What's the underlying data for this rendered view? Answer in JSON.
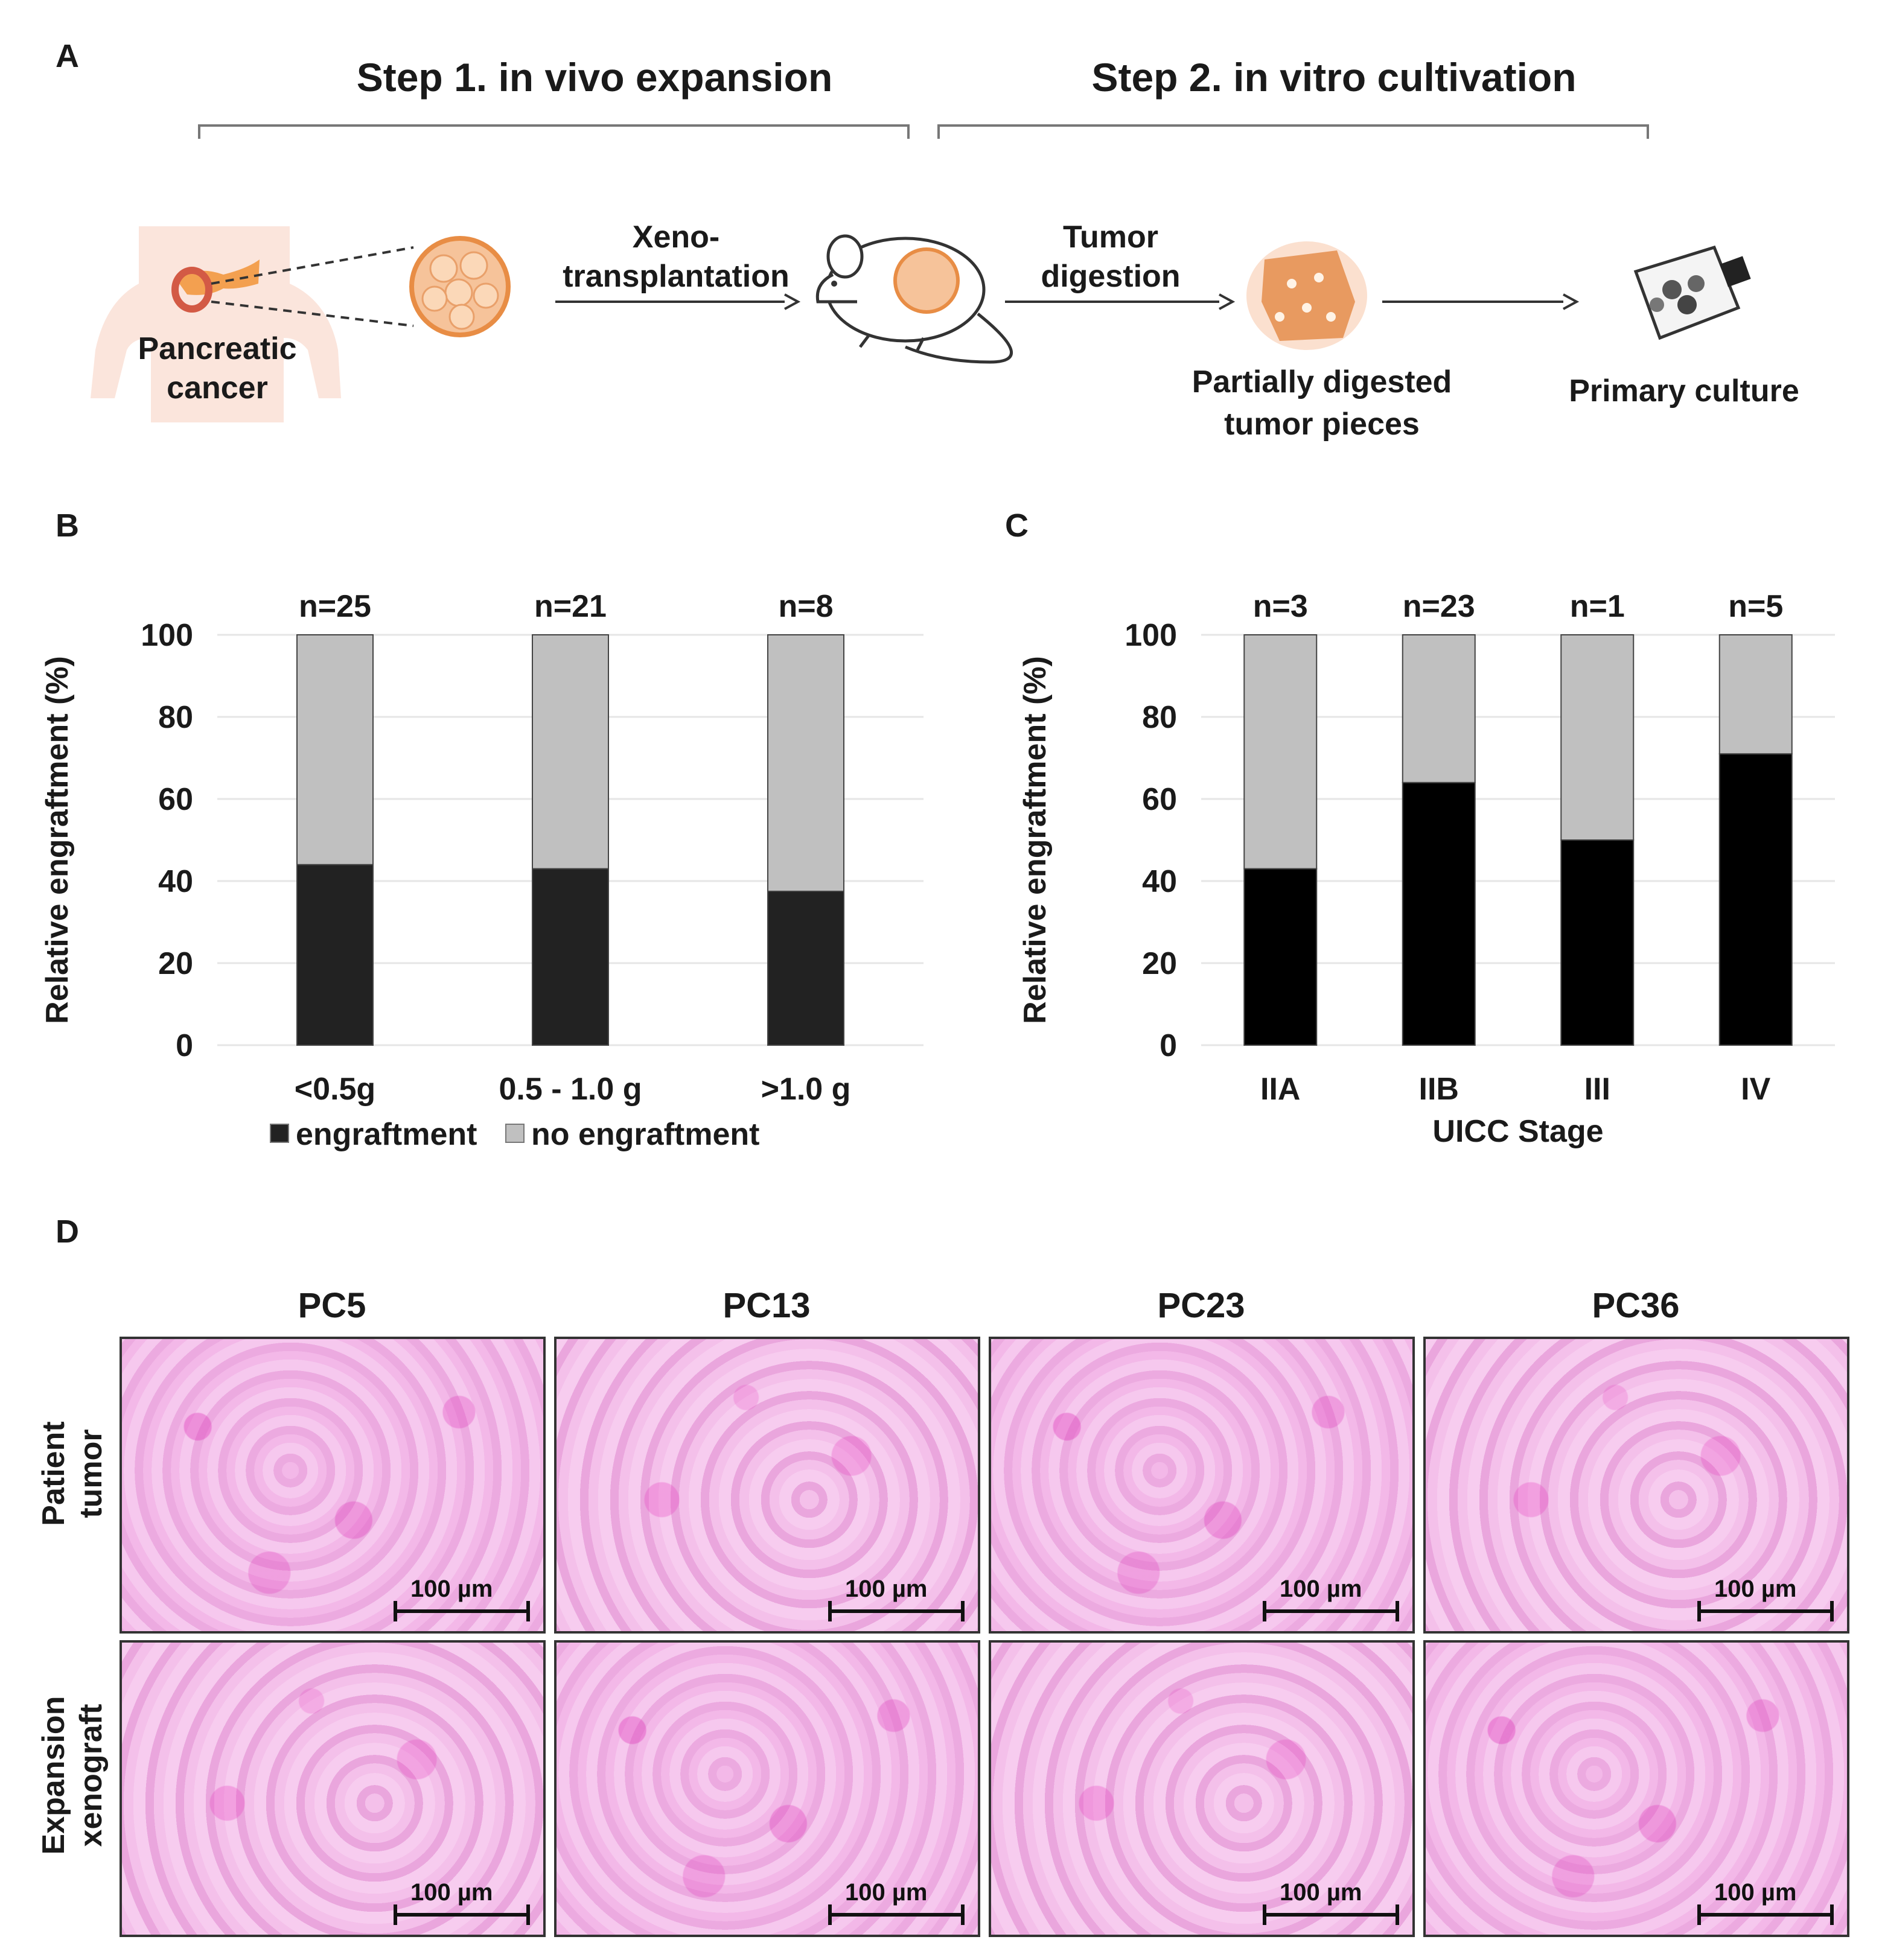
{
  "panels": {
    "a": "A",
    "b": "B",
    "c": "C",
    "d": "D"
  },
  "workflow": {
    "step1_title": "Step 1. in vivo expansion",
    "step2_title": "Step 2. in vitro cultivation",
    "patient_label_line1": "Pancreatic",
    "patient_label_line2": "cancer",
    "arrow1_line1": "Xeno-",
    "arrow1_line2": "transplantation",
    "arrow2_line1": "Tumor",
    "arrow2_line2": "digestion",
    "digested_line1": "Partially digested",
    "digested_line2": "tumor pieces",
    "culture_label": "Primary culture"
  },
  "chart_data": [
    {
      "type": "bar",
      "stacked": true,
      "panel": "B",
      "categories": [
        "<0.5g",
        "0.5 - 1.0 g",
        ">1.0 g"
      ],
      "counts": [
        "n=25",
        "n=21",
        "n=8"
      ],
      "series": [
        {
          "name": "engraftment",
          "color": "#222222",
          "values": [
            44,
            43,
            37.5
          ]
        },
        {
          "name": "no engraftment",
          "color": "#c0c0c0",
          "values": [
            56,
            57,
            62.5
          ]
        }
      ],
      "xlabel": "",
      "ylabel": "Relative engraftment (%)",
      "ylim": [
        0,
        100
      ],
      "yticks": [
        "0",
        "20",
        "40",
        "60",
        "80",
        "100"
      ],
      "legend": [
        "engraftment",
        "no engraftment"
      ],
      "legend_position": "bottom"
    },
    {
      "type": "bar",
      "stacked": true,
      "panel": "C",
      "categories": [
        "IIA",
        "IIB",
        "III",
        "IV"
      ],
      "counts": [
        "n=3",
        "n=23",
        "n=1",
        "n=5"
      ],
      "series": [
        {
          "name": "engraftment",
          "color": "#000000",
          "values": [
            43,
            64,
            50,
            71
          ]
        },
        {
          "name": "no engraftment",
          "color": "#c0c0c0",
          "values": [
            57,
            36,
            50,
            29
          ]
        }
      ],
      "xlabel": "UICC Stage",
      "ylabel": "Relative engraftment (%)",
      "ylim": [
        0,
        100
      ],
      "yticks": [
        "0",
        "20",
        "40",
        "60",
        "80",
        "100"
      ]
    }
  ],
  "histology": {
    "columns": [
      "PC5",
      "PC13",
      "PC23",
      "PC36"
    ],
    "row1_line1": "Patient",
    "row1_line2": "tumor",
    "row2_line1": "Expansion",
    "row2_line2": "xenograft",
    "scale": "100 µm"
  }
}
